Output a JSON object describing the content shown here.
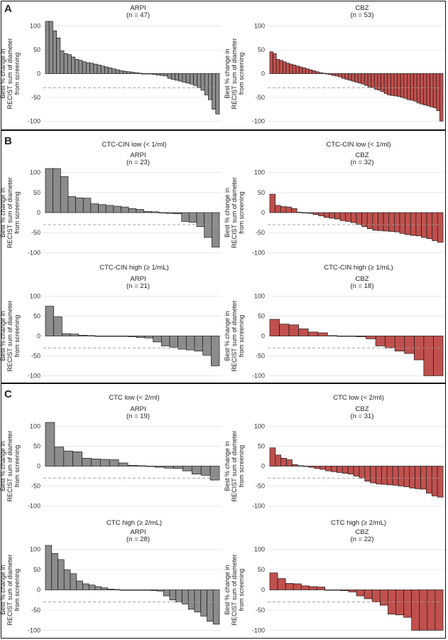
{
  "panels": [
    {
      "letter": "A",
      "subtitles": [
        "",
        ""
      ]
    },
    {
      "letter": "B",
      "subtitles": [
        "CTC-CIN low (< 1/ml)",
        "CTC-CIN high (≥ 1/mL)"
      ]
    },
    {
      "letter": "C",
      "subtitles": [
        "CTC low (< 2/ml)",
        "CTC high (≥ 2/mL)"
      ]
    }
  ],
  "colors": {
    "ARPI": "#8c8c8c",
    "CBZ": "#c0504d",
    "grid": "#e4e4e4",
    "ref_line": "#9a9a9a"
  },
  "chart_data": [
    {
      "type": "bar",
      "panel": "A",
      "title": "ARPI",
      "subtitle": "(n = 47)",
      "ylabel": [
        "Best % change in",
        "RECIST sum of diameter",
        "from screening"
      ],
      "ylim": [
        -110,
        110
      ],
      "yticks": [
        -100,
        -50,
        0,
        50,
        100
      ],
      "reference_line": -30,
      "color": "ARPI",
      "values": [
        110,
        110,
        90,
        75,
        48,
        42,
        40,
        35,
        30,
        28,
        25,
        23,
        22,
        20,
        18,
        16,
        14,
        12,
        10,
        8,
        6,
        5,
        4,
        3,
        2,
        1,
        0,
        0,
        0,
        -2,
        -3,
        -4,
        -5,
        -10,
        -12,
        -14,
        -16,
        -18,
        -20,
        -22,
        -25,
        -30,
        -35,
        -45,
        -55,
        -75,
        -85
      ]
    },
    {
      "type": "bar",
      "panel": "A",
      "title": "CBZ",
      "subtitle": "(n = 53)",
      "ylabel": [
        "Best % change in",
        "RECIST sum of diameter",
        "from screening"
      ],
      "ylim": [
        -110,
        110
      ],
      "yticks": [
        -100,
        -50,
        0,
        50,
        100
      ],
      "reference_line": -30,
      "color": "CBZ",
      "values": [
        46,
        42,
        30,
        28,
        25,
        22,
        20,
        18,
        16,
        14,
        12,
        10,
        8,
        6,
        4,
        2,
        1,
        0,
        -2,
        -4,
        -5,
        -7,
        -10,
        -12,
        -14,
        -16,
        -18,
        -20,
        -22,
        -25,
        -28,
        -30,
        -33,
        -35,
        -38,
        -42,
        -45,
        -46,
        -47,
        -48,
        -50,
        -52,
        -55,
        -56,
        -58,
        -62,
        -64,
        -66,
        -68,
        -70,
        -72,
        -78,
        -100
      ]
    },
    {
      "type": "bar",
      "panel": "B",
      "title": "ARPI",
      "subtitle": "(n = 23)",
      "ylabel": [
        "Best % change in",
        "RECIST sum of diameter",
        "from screening"
      ],
      "ylim": [
        -110,
        110
      ],
      "yticks": [
        -100,
        -50,
        0,
        50,
        100
      ],
      "reference_line": -30,
      "color": "ARPI",
      "values": [
        110,
        110,
        90,
        40,
        37,
        36,
        22,
        20,
        18,
        16,
        14,
        10,
        8,
        3,
        2,
        0,
        -2,
        -3,
        -22,
        -24,
        -35,
        -62,
        -86
      ]
    },
    {
      "type": "bar",
      "panel": "B",
      "title": "CBZ",
      "subtitle": "(n = 32)",
      "ylabel": [
        "Best % change in",
        "RECIST sum of diameter",
        "from screening"
      ],
      "ylim": [
        -110,
        110
      ],
      "yticks": [
        -100,
        -50,
        0,
        50,
        100
      ],
      "reference_line": -30,
      "color": "CBZ",
      "values": [
        46,
        18,
        15,
        14,
        10,
        1,
        0,
        -2,
        -5,
        -8,
        -12,
        -14,
        -16,
        -20,
        -22,
        -25,
        -30,
        -35,
        -40,
        -44,
        -45,
        -46,
        -47,
        -48,
        -52,
        -55,
        -57,
        -58,
        -62,
        -65,
        -70,
        -74
      ]
    },
    {
      "type": "bar",
      "panel": "B",
      "title": "ARPI",
      "subtitle": "(n = 21)",
      "ylabel": [
        "Best % change in",
        "RECIST sum of diameter",
        "from screening"
      ],
      "ylim": [
        -110,
        110
      ],
      "yticks": [
        -100,
        -50,
        0,
        50,
        100
      ],
      "reference_line": -30,
      "color": "ARPI",
      "values": [
        75,
        48,
        6,
        5,
        2,
        1,
        0,
        0,
        0,
        0,
        -2,
        -4,
        -5,
        -15,
        -25,
        -28,
        -33,
        -35,
        -38,
        -48,
        -75
      ]
    },
    {
      "type": "bar",
      "panel": "B",
      "title": "CBZ",
      "subtitle": "(n = 18)",
      "ylabel": [
        "Best % change in",
        "RECIST sum of diameter",
        "from screening"
      ],
      "ylim": [
        -110,
        110
      ],
      "yticks": [
        -100,
        -50,
        0,
        50,
        100
      ],
      "reference_line": -30,
      "color": "CBZ",
      "values": [
        42,
        30,
        28,
        18,
        10,
        8,
        1,
        0,
        -1,
        -2,
        -7,
        -25,
        -30,
        -38,
        -44,
        -60,
        -100,
        -100
      ]
    },
    {
      "type": "bar",
      "panel": "C",
      "title": "ARPI",
      "subtitle": "(n = 19)",
      "ylabel": [
        "Best % change in",
        "RECIST sum of diameter",
        "from screening"
      ],
      "ylim": [
        -110,
        110
      ],
      "yticks": [
        -100,
        -50,
        0,
        50,
        100
      ],
      "reference_line": -30,
      "color": "ARPI",
      "values": [
        110,
        48,
        38,
        36,
        20,
        18,
        17,
        16,
        8,
        2,
        1,
        0,
        -3,
        -5,
        -6,
        -12,
        -20,
        -23,
        -35
      ]
    },
    {
      "type": "bar",
      "panel": "C",
      "title": "CBZ",
      "subtitle": "(n = 31)",
      "ylabel": [
        "Best % change in",
        "RECIST sum of diameter",
        "from screening"
      ],
      "ylim": [
        -110,
        110
      ],
      "yticks": [
        -100,
        -50,
        0,
        50,
        100
      ],
      "reference_line": -30,
      "color": "CBZ",
      "values": [
        46,
        28,
        20,
        16,
        4,
        1,
        0,
        -3,
        -6,
        -8,
        -12,
        -14,
        -16,
        -18,
        -20,
        -25,
        -30,
        -38,
        -42,
        -45,
        -46,
        -47,
        -48,
        -50,
        -52,
        -55,
        -57,
        -58,
        -68,
        -75,
        -78
      ]
    },
    {
      "type": "bar",
      "panel": "C",
      "title": "ARPI",
      "subtitle": "(n = 28)",
      "ylabel": [
        "Best % change in",
        "RECIST sum of diameter",
        "from screening"
      ],
      "ylim": [
        -110,
        110
      ],
      "yticks": [
        -100,
        -50,
        0,
        50,
        100
      ],
      "reference_line": -30,
      "color": "ARPI",
      "values": [
        110,
        90,
        75,
        50,
        40,
        22,
        15,
        12,
        8,
        5,
        2,
        1,
        0,
        0,
        0,
        0,
        0,
        -2,
        -3,
        -15,
        -25,
        -30,
        -35,
        -48,
        -55,
        -65,
        -78,
        -85
      ]
    },
    {
      "type": "bar",
      "panel": "C",
      "title": "CBZ",
      "subtitle": "(n = 22)",
      "ylabel": [
        "Best % change in",
        "RECIST sum of diameter",
        "from screening"
      ],
      "ylim": [
        -110,
        110
      ],
      "yticks": [
        -100,
        -50,
        0,
        50,
        100
      ],
      "reference_line": -30,
      "color": "CBZ",
      "values": [
        42,
        28,
        16,
        15,
        10,
        8,
        7,
        0,
        -1,
        -2,
        -5,
        -15,
        -22,
        -30,
        -38,
        -60,
        -62,
        -68,
        -100,
        -100,
        -100,
        -100
      ]
    }
  ]
}
